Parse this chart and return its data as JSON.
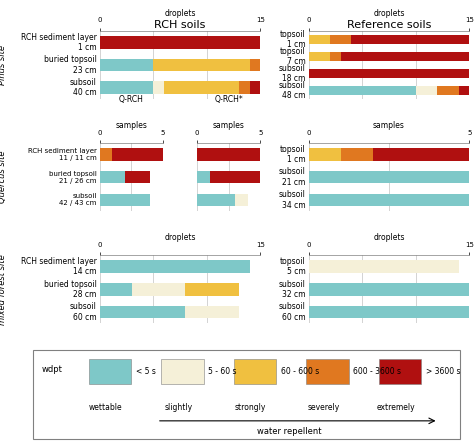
{
  "colors": {
    "wettable": "#7ec8c8",
    "slightly": "#f5f0d8",
    "strongly": "#f0c040",
    "severely": "#e07820",
    "extremely": "#b01010"
  },
  "col_titles": [
    "RCH soils",
    "Reference soils"
  ],
  "row_labels": [
    "Pinus site",
    "Quercus site",
    "mixed forest site"
  ],
  "pinus_rch": {
    "labels": [
      "RCH sediment layer\n1 cm",
      "buried topsoil\n23 cm",
      "subsoil\n40 cm"
    ],
    "xmax": 15,
    "xlabel": "droplets",
    "bars": [
      [
        0,
        0,
        0,
        0,
        15
      ],
      [
        5,
        0,
        9,
        1,
        0
      ],
      [
        5,
        1,
        7,
        1,
        1
      ]
    ]
  },
  "pinus_ref": {
    "labels": [
      "topsoil\n1 cm",
      "topsoil\n7 cm",
      "subsoil\n18 cm",
      "subsoil\n48 cm"
    ],
    "xmax": 15,
    "xlabel": "droplets",
    "bars": [
      [
        0,
        0,
        2,
        2,
        11
      ],
      [
        0,
        0,
        2,
        1,
        12
      ],
      [
        0,
        0,
        0,
        0,
        15
      ],
      [
        10,
        2,
        0,
        2,
        1
      ]
    ]
  },
  "quercus_rch_left": {
    "title": "Q-RCH",
    "labels": [
      "RCH sediment layer\n11 / 11 cm",
      "buried topsoil\n21 / 26 cm",
      "subsoil\n42 / 43 cm"
    ],
    "xmax": 5,
    "xlabel": "samples",
    "bars": [
      [
        0,
        0,
        0,
        1,
        4
      ],
      [
        2,
        0,
        0,
        0,
        2
      ],
      [
        4,
        0,
        0,
        0,
        0
      ]
    ]
  },
  "quercus_rch_right": {
    "title": "Q-RCH*",
    "labels": [
      "",
      "",
      ""
    ],
    "xmax": 5,
    "xlabel": "samples",
    "bars": [
      [
        0,
        0,
        0,
        0,
        5
      ],
      [
        1,
        0,
        0,
        0,
        4
      ],
      [
        3,
        1,
        0,
        0,
        0
      ]
    ]
  },
  "quercus_ref": {
    "labels": [
      "topsoil\n1 cm",
      "subsoil\n21 cm",
      "subsoil\n34 cm"
    ],
    "xmax": 5,
    "xlabel": "samples",
    "bars": [
      [
        0,
        0,
        1,
        1,
        3
      ],
      [
        5,
        0,
        0,
        0,
        0
      ],
      [
        5,
        0,
        0,
        0,
        0
      ]
    ]
  },
  "mixed_rch": {
    "labels": [
      "RCH sediment layer\n14 cm",
      "buried topsoil\n28 cm",
      "subsoil\n60 cm"
    ],
    "xmax": 15,
    "xlabel": "droplets",
    "bars": [
      [
        14,
        0,
        0,
        0,
        0
      ],
      [
        3,
        5,
        5,
        0,
        0
      ],
      [
        8,
        5,
        0,
        0,
        0
      ]
    ]
  },
  "mixed_ref": {
    "labels": [
      "topsoil\n5 cm",
      "subsoil\n32 cm",
      "subsoil\n60 cm"
    ],
    "xmax": 15,
    "xlabel": "droplets",
    "bars": [
      [
        0,
        14,
        0,
        0,
        0
      ],
      [
        15,
        0,
        0,
        0,
        0
      ],
      [
        15,
        0,
        0,
        0,
        0
      ]
    ]
  },
  "legend": {
    "labels": [
      "< 5 s",
      "5 - 60 s",
      "60 - 600 s",
      "600 - 3600 s",
      "> 3600 s"
    ],
    "category_labels": [
      "wettable",
      "slightly",
      "strongly",
      "severely",
      "extremely"
    ],
    "bottom_label": "water repellent"
  }
}
